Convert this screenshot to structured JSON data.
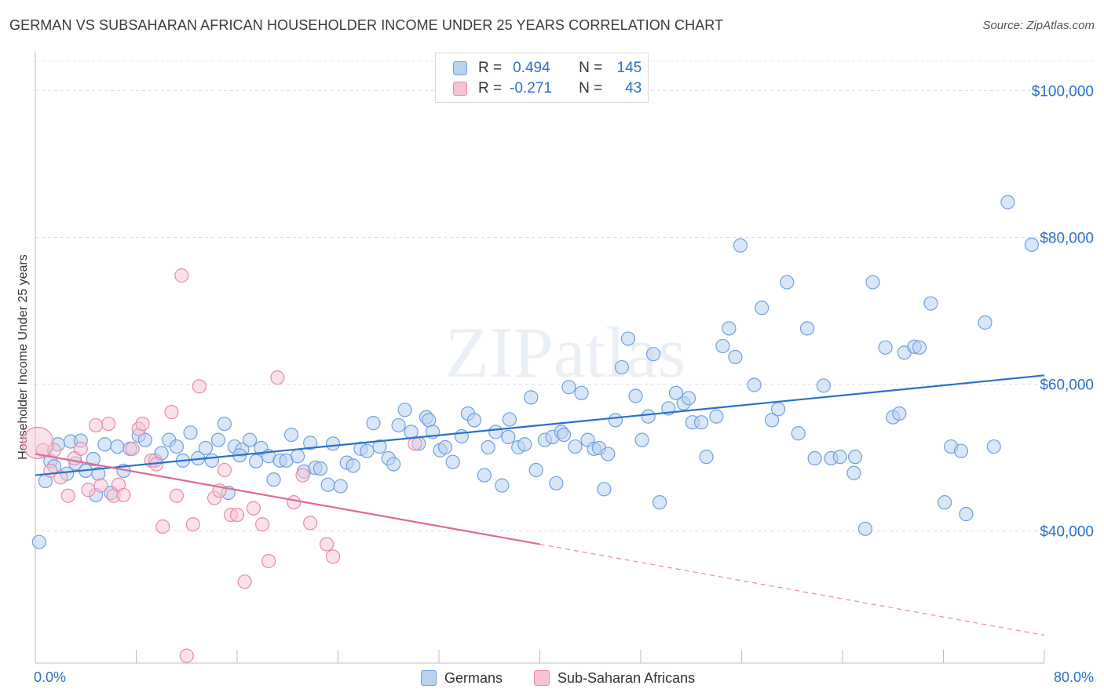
{
  "title": "GERMAN VS SUBSAHARAN AFRICAN HOUSEHOLDER INCOME UNDER 25 YEARS CORRELATION CHART",
  "source": "Source: ZipAtlas.com",
  "watermark": "ZIPatlas",
  "legend": {
    "r_label": "R =",
    "n_label": "N =",
    "germans": {
      "r": "0.494",
      "n": "145",
      "color": "#6fa1de",
      "fill": "#b9d2f2"
    },
    "subsaharan": {
      "r": "-0.271",
      "n": "43",
      "color": "#e98aab",
      "fill": "#f7c3d4"
    }
  },
  "bottom_legend": {
    "germans": "Germans",
    "subsaharan": "Sub-Saharan Africans"
  },
  "chart_data": {
    "type": "scatter",
    "title": "GERMAN VS SUBSAHARAN AFRICAN HOUSEHOLDER INCOME UNDER 25 YEARS CORRELATION CHART",
    "xlabel": "",
    "ylabel": "Householder Income Under 25 years",
    "xlim": [
      0,
      80
    ],
    "ylim": [
      22000,
      104000
    ],
    "x_tick_labels": [
      "0.0%",
      "80.0%"
    ],
    "y_ticks": [
      40000,
      60000,
      80000,
      100000
    ],
    "y_tick_labels": [
      "$40,000",
      "$60,000",
      "$80,000",
      "$100,000"
    ],
    "grid": true,
    "legend_position": "top-center",
    "series": [
      {
        "name": "Germans",
        "color": "#6fa1de",
        "trend": {
          "x": [
            0,
            80
          ],
          "y": [
            47600,
            61200
          ]
        },
        "points": [
          [
            0.3,
            38500
          ],
          [
            0.8,
            46800
          ],
          [
            1.2,
            49500
          ],
          [
            1.5,
            48800
          ],
          [
            1.8,
            51800
          ],
          [
            2.5,
            47800
          ],
          [
            2.8,
            52200
          ],
          [
            3.2,
            49200
          ],
          [
            3.6,
            52300
          ],
          [
            4.0,
            48200
          ],
          [
            4.6,
            49800
          ],
          [
            5.0,
            47800
          ],
          [
            5.5,
            51800
          ],
          [
            6.0,
            45200
          ],
          [
            6.5,
            51500
          ],
          [
            7.0,
            48200
          ],
          [
            7.5,
            51200
          ],
          [
            8.2,
            53000
          ],
          [
            8.7,
            52400
          ],
          [
            9.5,
            49600
          ],
          [
            10.0,
            50600
          ],
          [
            10.6,
            52400
          ],
          [
            11.2,
            51500
          ],
          [
            11.7,
            49600
          ],
          [
            12.3,
            53400
          ],
          [
            12.9,
            49900
          ],
          [
            13.5,
            51300
          ],
          [
            14.0,
            49600
          ],
          [
            14.5,
            52400
          ],
          [
            15.0,
            54600
          ],
          [
            15.3,
            45200
          ],
          [
            15.8,
            51500
          ],
          [
            16.4,
            51100
          ],
          [
            17.0,
            52400
          ],
          [
            17.5,
            49500
          ],
          [
            17.9,
            51300
          ],
          [
            18.5,
            50200
          ],
          [
            18.9,
            47000
          ],
          [
            19.4,
            49600
          ],
          [
            19.9,
            49600
          ],
          [
            20.3,
            53100
          ],
          [
            20.8,
            50200
          ],
          [
            21.3,
            48100
          ],
          [
            21.8,
            52000
          ],
          [
            22.2,
            48600
          ],
          [
            22.6,
            48500
          ],
          [
            23.2,
            46300
          ],
          [
            23.6,
            51900
          ],
          [
            24.2,
            46100
          ],
          [
            24.7,
            49300
          ],
          [
            25.2,
            48900
          ],
          [
            25.8,
            51200
          ],
          [
            26.3,
            50900
          ],
          [
            26.8,
            54700
          ],
          [
            27.3,
            51500
          ],
          [
            28.0,
            49900
          ],
          [
            28.4,
            49100
          ],
          [
            28.8,
            54400
          ],
          [
            29.3,
            56500
          ],
          [
            29.8,
            53500
          ],
          [
            30.4,
            51900
          ],
          [
            31.0,
            55500
          ],
          [
            31.2,
            55100
          ],
          [
            31.5,
            53500
          ],
          [
            32.1,
            51000
          ],
          [
            32.5,
            51400
          ],
          [
            33.1,
            49400
          ],
          [
            33.8,
            52900
          ],
          [
            34.3,
            56000
          ],
          [
            34.8,
            55100
          ],
          [
            35.6,
            47600
          ],
          [
            35.9,
            51400
          ],
          [
            36.5,
            53500
          ],
          [
            37.0,
            46200
          ],
          [
            37.5,
            52800
          ],
          [
            38.3,
            51400
          ],
          [
            38.8,
            51800
          ],
          [
            39.3,
            58200
          ],
          [
            39.7,
            48300
          ],
          [
            40.4,
            52400
          ],
          [
            41.0,
            52800
          ],
          [
            41.3,
            46500
          ],
          [
            41.7,
            53500
          ],
          [
            42.3,
            59600
          ],
          [
            42.8,
            51500
          ],
          [
            43.3,
            58800
          ],
          [
            43.8,
            52400
          ],
          [
            44.3,
            51200
          ],
          [
            44.7,
            51300
          ],
          [
            45.1,
            45700
          ],
          [
            45.4,
            50500
          ],
          [
            46.0,
            55100
          ],
          [
            46.5,
            62300
          ],
          [
            47.0,
            66200
          ],
          [
            47.6,
            58400
          ],
          [
            48.1,
            52400
          ],
          [
            48.6,
            55600
          ],
          [
            49.0,
            64100
          ],
          [
            49.5,
            43900
          ],
          [
            50.2,
            56700
          ],
          [
            50.8,
            58800
          ],
          [
            51.4,
            57400
          ],
          [
            51.8,
            58100
          ],
          [
            52.1,
            54800
          ],
          [
            52.8,
            54800
          ],
          [
            53.2,
            50100
          ],
          [
            54.0,
            55600
          ],
          [
            54.5,
            65200
          ],
          [
            55.0,
            67600
          ],
          [
            55.5,
            63700
          ],
          [
            55.9,
            78900
          ],
          [
            57.0,
            59900
          ],
          [
            57.6,
            70400
          ],
          [
            58.4,
            55100
          ],
          [
            58.9,
            56600
          ],
          [
            59.6,
            73900
          ],
          [
            60.5,
            53300
          ],
          [
            61.2,
            67600
          ],
          [
            61.8,
            49900
          ],
          [
            62.5,
            59800
          ],
          [
            63.1,
            49900
          ],
          [
            63.8,
            50100
          ],
          [
            64.9,
            47900
          ],
          [
            65.0,
            50100
          ],
          [
            65.8,
            40300
          ],
          [
            66.4,
            73900
          ],
          [
            67.4,
            65000
          ],
          [
            68.0,
            55500
          ],
          [
            68.5,
            56000
          ],
          [
            68.9,
            64300
          ],
          [
            69.7,
            65100
          ],
          [
            70.1,
            65000
          ],
          [
            71.0,
            71000
          ],
          [
            72.1,
            43900
          ],
          [
            72.6,
            51500
          ],
          [
            73.4,
            50900
          ],
          [
            73.8,
            42300
          ],
          [
            75.3,
            68400
          ],
          [
            76.0,
            51500
          ],
          [
            77.1,
            84800
          ],
          [
            79.0,
            79000
          ],
          [
            4.8,
            44900
          ],
          [
            16.2,
            50300
          ],
          [
            37.6,
            55200
          ],
          [
            41.9,
            53100
          ]
        ]
      },
      {
        "name": "Sub-Saharan Africans",
        "color": "#e98aab",
        "trend": {
          "x": [
            0,
            40
          ],
          "y": [
            50500,
            38200
          ]
        },
        "trend_extension": {
          "x": [
            40,
            80
          ],
          "y": [
            38200,
            25800
          ]
        },
        "points": [
          [
            0.6,
            51000
          ],
          [
            1.2,
            48200
          ],
          [
            1.5,
            51000
          ],
          [
            2.0,
            47300
          ],
          [
            2.6,
            44800
          ],
          [
            3.1,
            49900
          ],
          [
            3.6,
            51200
          ],
          [
            4.2,
            45600
          ],
          [
            4.8,
            54400
          ],
          [
            5.2,
            46200
          ],
          [
            5.8,
            54600
          ],
          [
            6.2,
            44800
          ],
          [
            6.6,
            46300
          ],
          [
            7.0,
            44900
          ],
          [
            7.7,
            51200
          ],
          [
            8.2,
            53900
          ],
          [
            8.5,
            54600
          ],
          [
            9.2,
            49600
          ],
          [
            9.6,
            49100
          ],
          [
            10.1,
            40600
          ],
          [
            10.8,
            56200
          ],
          [
            11.2,
            44800
          ],
          [
            11.6,
            74800
          ],
          [
            12.5,
            40900
          ],
          [
            13.0,
            59700
          ],
          [
            14.2,
            44500
          ],
          [
            14.6,
            45500
          ],
          [
            15.0,
            48300
          ],
          [
            15.5,
            42200
          ],
          [
            16.0,
            42200
          ],
          [
            16.6,
            33100
          ],
          [
            17.3,
            43100
          ],
          [
            18.0,
            40900
          ],
          [
            18.5,
            35900
          ],
          [
            19.2,
            60900
          ],
          [
            20.5,
            43900
          ],
          [
            21.2,
            47600
          ],
          [
            21.8,
            41100
          ],
          [
            23.1,
            38200
          ],
          [
            23.6,
            36500
          ],
          [
            30.1,
            51900
          ],
          [
            12.0,
            23000
          ],
          [
            0.2,
            52000
          ]
        ]
      }
    ]
  }
}
